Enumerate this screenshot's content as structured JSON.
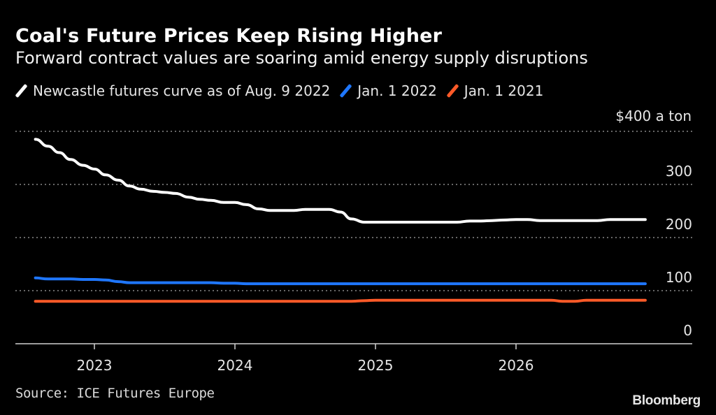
{
  "header": {
    "title": "Coal's Future Prices Keep Rising Higher",
    "subtitle": "Forward contract values are soaring amid energy supply disruptions"
  },
  "footer": {
    "source": "Source: ICE Futures Europe",
    "brand": "Bloomberg"
  },
  "chart_data": {
    "type": "line",
    "title": "Coal's Future Prices Keep Rising Higher",
    "subtitle": "Forward contract values are soaring amid energy supply disruptions",
    "xlabel": "",
    "ylabel": "$ a ton",
    "unit_label": "$400 a ton",
    "ylim": [
      0,
      400
    ],
    "yticks": [
      0,
      100,
      200,
      300,
      400
    ],
    "ytick_labels": [
      "0",
      "100",
      "200",
      "300",
      "$400 a ton"
    ],
    "xlim": [
      2022.58,
      2027.1
    ],
    "xticks": [
      2023,
      2024,
      2025,
      2026
    ],
    "xtick_labels": [
      "2023",
      "2024",
      "2025",
      "2026"
    ],
    "grid": true,
    "legend_position": "top-left",
    "x": [
      2022.58,
      2022.67,
      2022.75,
      2022.83,
      2022.92,
      2023.0,
      2023.08,
      2023.17,
      2023.25,
      2023.33,
      2023.42,
      2023.5,
      2023.58,
      2023.67,
      2023.75,
      2023.83,
      2023.92,
      2024.0,
      2024.08,
      2024.17,
      2024.25,
      2024.33,
      2024.42,
      2024.5,
      2024.58,
      2024.67,
      2024.75,
      2024.83,
      2024.92,
      2025.0,
      2025.08,
      2025.17,
      2025.25,
      2025.33,
      2025.42,
      2025.5,
      2025.58,
      2025.67,
      2025.75,
      2025.83,
      2025.92,
      2026.0,
      2026.08,
      2026.17,
      2026.25,
      2026.33,
      2026.42,
      2026.5,
      2026.58,
      2026.67,
      2026.75,
      2026.92
    ],
    "series": [
      {
        "name": "Newcastle futures curve as of Aug. 9 2022",
        "color": "#ffffff",
        "values": [
          385,
          372,
          360,
          347,
          336,
          329,
          318,
          308,
          297,
          291,
          287,
          285,
          283,
          276,
          272,
          270,
          266,
          266,
          262,
          254,
          251,
          251,
          251,
          253,
          253,
          253,
          248,
          235,
          229,
          229,
          229,
          229,
          229,
          229,
          229,
          229,
          229,
          231,
          231,
          232,
          233,
          234,
          234,
          232,
          232,
          232,
          232,
          232,
          232,
          234,
          234,
          234
        ]
      },
      {
        "name": "Jan. 1 2022",
        "color": "#1f77ff",
        "values": [
          124,
          122,
          122,
          122,
          121,
          121,
          120,
          117,
          115,
          115,
          115,
          115,
          115,
          115,
          115,
          115,
          114,
          114,
          113,
          113,
          113,
          113,
          113,
          113,
          113,
          113,
          113,
          113,
          113,
          113,
          113,
          113,
          113,
          113,
          113,
          113,
          113,
          113,
          113,
          113,
          113,
          113,
          113,
          113,
          113,
          113,
          113,
          113,
          113,
          113,
          113,
          113
        ]
      },
      {
        "name": "Jan. 1 2021",
        "color": "#ff5a28",
        "values": [
          80,
          80,
          80,
          80,
          80,
          80,
          80,
          80,
          80,
          80,
          80,
          80,
          80,
          80,
          80,
          80,
          80,
          80,
          80,
          80,
          80,
          80,
          80,
          80,
          80,
          80,
          80,
          80,
          81,
          82,
          82,
          82,
          82,
          82,
          82,
          82,
          82,
          82,
          82,
          82,
          82,
          82,
          82,
          82,
          82,
          80,
          80,
          82,
          82,
          82,
          82,
          82
        ]
      }
    ]
  }
}
